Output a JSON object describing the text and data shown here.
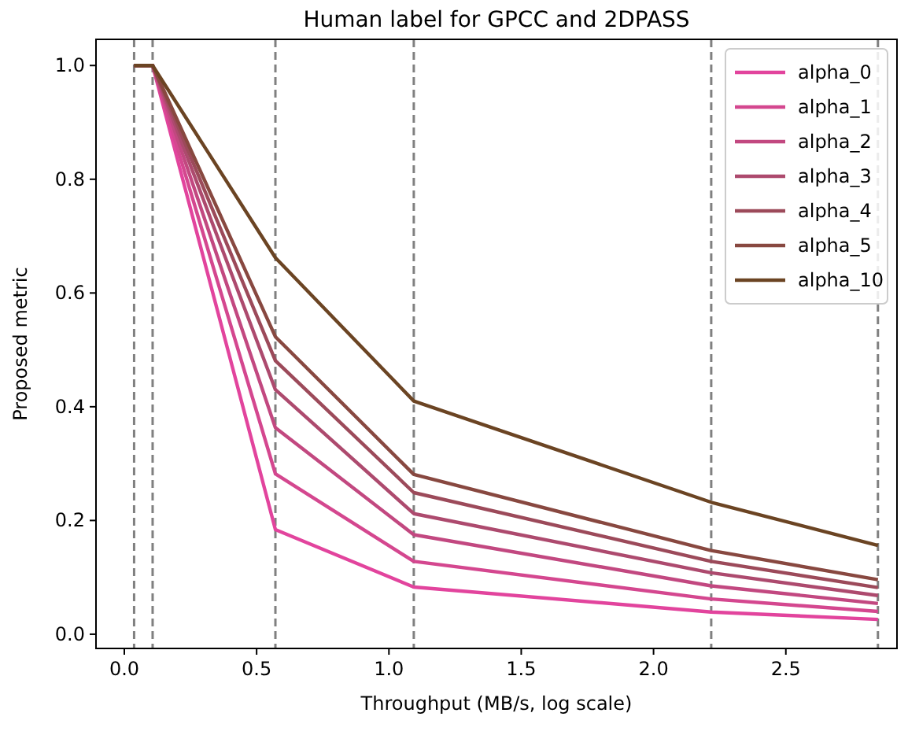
{
  "chart_data": {
    "type": "line",
    "title": "Human label for GPCC and 2DPASS",
    "xlabel": "Throughput (MB/s, log scale)",
    "ylabel": "Proposed metric",
    "x": [
      0.037,
      0.107,
      0.571,
      1.094,
      2.218,
      2.848
    ],
    "series": [
      {
        "name": "alpha_0",
        "color": "#e2449d",
        "values": [
          1.0,
          1.0,
          0.184,
          0.083,
          0.039,
          0.026
        ]
      },
      {
        "name": "alpha_1",
        "color": "#d4478f",
        "values": [
          1.0,
          1.0,
          0.282,
          0.128,
          0.062,
          0.04
        ]
      },
      {
        "name": "alpha_2",
        "color": "#c24880",
        "values": [
          1.0,
          1.0,
          0.363,
          0.175,
          0.085,
          0.054
        ]
      },
      {
        "name": "alpha_3",
        "color": "#ad4a6e",
        "values": [
          1.0,
          1.0,
          0.43,
          0.212,
          0.108,
          0.068
        ]
      },
      {
        "name": "alpha_4",
        "color": "#9c4a5a",
        "values": [
          1.0,
          1.0,
          0.481,
          0.249,
          0.128,
          0.082
        ]
      },
      {
        "name": "alpha_5",
        "color": "#884840",
        "values": [
          1.0,
          1.0,
          0.523,
          0.281,
          0.147,
          0.096
        ]
      },
      {
        "name": "alpha_10",
        "color": "#6b4423",
        "values": [
          1.0,
          1.0,
          0.662,
          0.41,
          0.232,
          0.156
        ]
      }
    ],
    "xlim": [
      -0.107,
      2.92
    ],
    "xticks": [
      {
        "value": 0,
        "label": "0.0"
      },
      0.5,
      {
        "value": 1,
        "label": "1.0"
      },
      1.5,
      {
        "value": 2,
        "label": "2.0"
      },
      2.5
    ],
    "ylim": [
      -0.025,
      1.046
    ],
    "yticks": [
      {
        "value": 0,
        "label": "0.0"
      },
      0.2,
      0.4,
      0.6,
      0.8,
      {
        "value": 1,
        "label": "1.0"
      }
    ],
    "ref_lines": [
      {
        "axis": "x",
        "value": 0.037,
        "color": "#808080",
        "line_style": "dashed"
      },
      {
        "axis": "x",
        "value": 0.107,
        "color": "#808080",
        "line_style": "dashed"
      },
      {
        "axis": "x",
        "value": 0.571,
        "color": "#808080",
        "line_style": "dashed"
      },
      {
        "axis": "x",
        "value": 1.094,
        "color": "#808080",
        "line_style": "dashed"
      },
      {
        "axis": "x",
        "value": 2.218,
        "color": "#808080",
        "line_style": "dashed"
      },
      {
        "axis": "x",
        "value": 2.848,
        "color": "#808080",
        "line_style": "dashed"
      }
    ],
    "legend": "top right",
    "grid": false,
    "marker": "none",
    "line_style": "solid"
  }
}
